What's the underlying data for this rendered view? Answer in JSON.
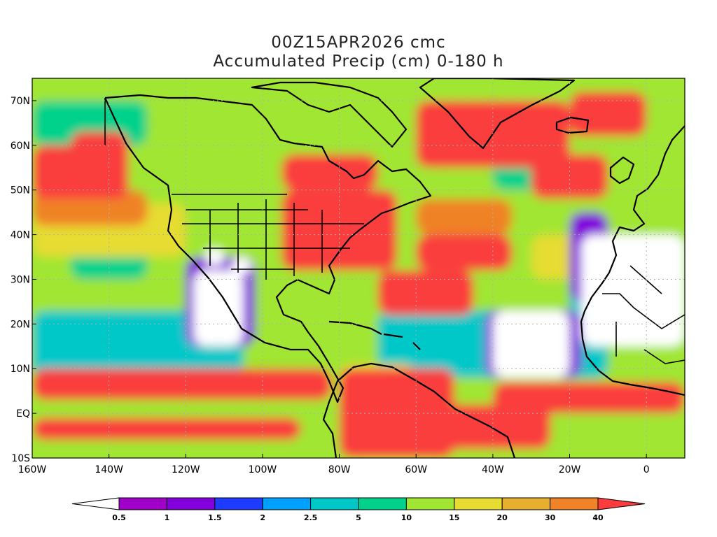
{
  "title": {
    "line1": "00Z15APR2026 cmc",
    "line2": "Accumulated Precip (cm) 0-180 h"
  },
  "map": {
    "lon_range": [
      -160,
      10
    ],
    "lat_range": [
      -10,
      75
    ],
    "lat_ticks": [
      {
        "value": 70,
        "label": "70N"
      },
      {
        "value": 60,
        "label": "60N"
      },
      {
        "value": 50,
        "label": "50N"
      },
      {
        "value": 40,
        "label": "40N"
      },
      {
        "value": 30,
        "label": "30N"
      },
      {
        "value": 20,
        "label": "20N"
      },
      {
        "value": 10,
        "label": "10N"
      },
      {
        "value": 0,
        "label": "EQ"
      },
      {
        "value": -10,
        "label": "10S"
      }
    ],
    "lon_ticks": [
      {
        "value": -160,
        "label": "160W"
      },
      {
        "value": -140,
        "label": "140W"
      },
      {
        "value": -120,
        "label": "120W"
      },
      {
        "value": -100,
        "label": "100W"
      },
      {
        "value": -80,
        "label": "80W"
      },
      {
        "value": -60,
        "label": "60W"
      },
      {
        "value": -40,
        "label": "40W"
      },
      {
        "value": -20,
        "label": "20W"
      },
      {
        "value": 0,
        "label": "0"
      }
    ],
    "grid": true
  },
  "colorbar": {
    "levels": [
      "0.5",
      "1",
      "1.5",
      "2",
      "2.5",
      "5",
      "10",
      "15",
      "20",
      "30",
      "40"
    ],
    "colors": [
      "#ffffff",
      "#a000c8",
      "#8200dc",
      "#1e3cff",
      "#00a0ff",
      "#00c8c8",
      "#00d28c",
      "#a0e632",
      "#e6dc32",
      "#e6af2d",
      "#f08228",
      "#fa3c3c"
    ]
  },
  "fields": [
    {
      "name": "base",
      "color": "#a0e632",
      "rects": [
        [
          -160,
          -10,
          170,
          85
        ]
      ]
    },
    {
      "name": "band-teal-tropics",
      "color": "#00c8c8",
      "rects": [
        [
          -160,
          8,
          55,
          15
        ],
        [
          -70,
          8,
          60,
          15
        ],
        [
          -20,
          20,
          15,
          15
        ]
      ]
    },
    {
      "name": "band-green-mid",
      "color": "#00d28c",
      "rects": [
        [
          -150,
          30,
          20,
          20
        ],
        [
          -160,
          60,
          30,
          10
        ],
        [
          -40,
          50,
          20,
          12
        ]
      ]
    },
    {
      "name": "band-yellow",
      "color": "#e6dc32",
      "rects": [
        [
          -160,
          35,
          40,
          12
        ],
        [
          -80,
          5,
          20,
          6
        ],
        [
          -30,
          30,
          20,
          10
        ]
      ]
    },
    {
      "name": "band-orange",
      "color": "#f08228",
      "rects": [
        [
          -160,
          42,
          30,
          8
        ],
        [
          -55,
          55,
          30,
          8
        ],
        [
          -60,
          40,
          25,
          8
        ]
      ]
    },
    {
      "name": "itcz-pacific",
      "color": "#fa3c3c",
      "rects": [
        [
          -160,
          3,
          78,
          7
        ],
        [
          -160,
          -6,
          70,
          5
        ]
      ]
    },
    {
      "name": "itcz-atlantic",
      "color": "#fa3c3c",
      "rects": [
        [
          -40,
          0,
          50,
          7
        ],
        [
          -65,
          -8,
          40,
          10
        ]
      ]
    },
    {
      "name": "amazon",
      "color": "#fa3c3c",
      "rects": [
        [
          -80,
          -10,
          30,
          20
        ]
      ]
    },
    {
      "name": "gulf-atlantic-storm",
      "color": "#fa3c3c",
      "rects": [
        [
          -95,
          32,
          30,
          18
        ],
        [
          -70,
          22,
          25,
          10
        ],
        [
          -60,
          32,
          25,
          8
        ]
      ]
    },
    {
      "name": "north-atlantic",
      "color": "#fa3c3c",
      "rects": [
        [
          -60,
          55,
          40,
          15
        ],
        [
          -30,
          48,
          20,
          10
        ],
        [
          -20,
          62,
          20,
          10
        ]
      ]
    },
    {
      "name": "alaska-gulf",
      "color": "#fa3c3c",
      "rects": [
        [
          -160,
          48,
          25,
          12
        ],
        [
          -150,
          55,
          15,
          8
        ]
      ]
    },
    {
      "name": "hudson",
      "color": "#fa3c3c",
      "rects": [
        [
          -95,
          50,
          25,
          8
        ]
      ]
    },
    {
      "name": "dry-purple-edge",
      "color": "#8200dc",
      "rects": [
        [
          -120,
          15,
          18,
          20
        ],
        [
          -42,
          8,
          25,
          15
        ],
        [
          -20,
          25,
          10,
          20
        ]
      ]
    },
    {
      "name": "dry-mexico-pacific",
      "color": "#ffffff",
      "rects": [
        [
          -118,
          15,
          13,
          17
        ]
      ]
    },
    {
      "name": "dry-central-atlantic",
      "color": "#ffffff",
      "rects": [
        [
          -40,
          8,
          20,
          15
        ]
      ]
    },
    {
      "name": "dry-sahara",
      "color": "#ffffff",
      "rects": [
        [
          -17,
          15,
          27,
          25
        ]
      ]
    },
    {
      "name": "dry-southwest-us",
      "color": "#ffffff",
      "rects": [
        [
          -115,
          33,
          5,
          4
        ],
        [
          -108,
          31,
          5,
          4
        ]
      ]
    }
  ]
}
